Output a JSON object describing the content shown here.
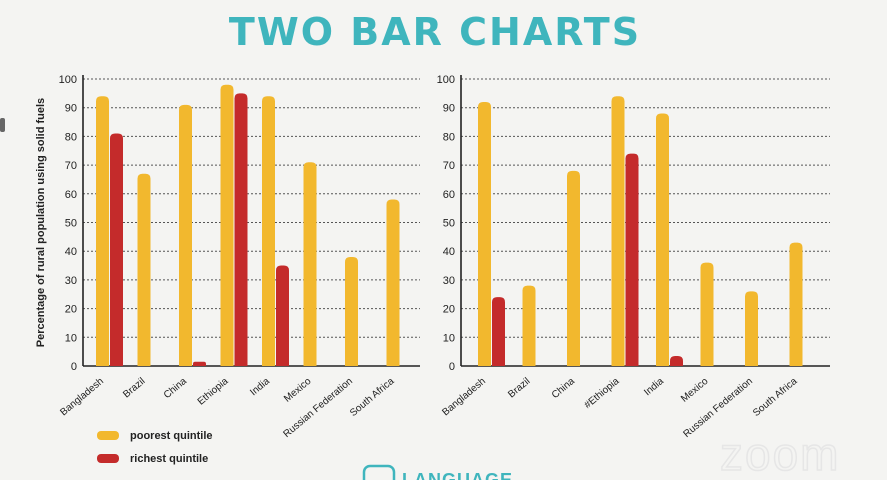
{
  "header": {
    "title": "TWO BAR CHARTS"
  },
  "brand": {
    "text": "LANGUAGE",
    "watermark": "zoom"
  },
  "colors": {
    "poorest": "#f2b82e",
    "richest": "#c42b2b",
    "title": "#3fb5bd"
  },
  "legend": [
    {
      "label": "poorest quintile",
      "color": "#f2b82e"
    },
    {
      "label": "richest quintile",
      "color": "#c42b2b"
    }
  ],
  "chart_data": [
    {
      "type": "bar",
      "ylabel": "Percentage of rural population using solid fuels",
      "ylim": [
        0,
        100
      ],
      "yticks": [
        0,
        10,
        20,
        30,
        40,
        50,
        60,
        70,
        80,
        90,
        100
      ],
      "grid": true,
      "categories": [
        "Bangladesh",
        "Brazil",
        "China",
        "Ethiopia",
        "India",
        "Mexico",
        "Russian Federation",
        "South Africa"
      ],
      "series": [
        {
          "name": "poorest quintile",
          "values": [
            94,
            67,
            91,
            98,
            94,
            71,
            38,
            58
          ]
        },
        {
          "name": "richest quintile",
          "values": [
            81,
            0,
            1.5,
            95,
            35,
            0,
            0,
            0
          ]
        }
      ]
    },
    {
      "type": "bar",
      "ylabel": "",
      "ylim": [
        0,
        100
      ],
      "yticks": [
        0,
        10,
        20,
        30,
        40,
        50,
        60,
        70,
        80,
        90,
        100
      ],
      "grid": true,
      "categories": [
        "Bangladesh",
        "Brazil",
        "China",
        "#Ethiopia",
        "India",
        "Mexico",
        "Russian Federation",
        "South Africa"
      ],
      "series": [
        {
          "name": "poorest quintile",
          "values": [
            92,
            28,
            68,
            94,
            88,
            36,
            26,
            43
          ]
        },
        {
          "name": "richest quintile",
          "values": [
            24,
            0,
            0,
            74,
            3.5,
            0,
            0,
            0
          ]
        }
      ]
    }
  ]
}
